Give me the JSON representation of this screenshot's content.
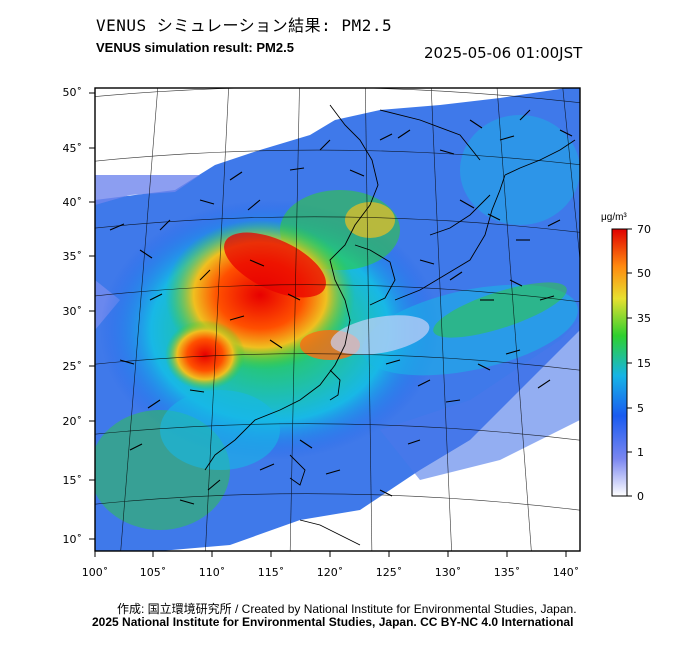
{
  "header": {
    "title_jp": "VENUS シミュレーション結果: PM2.5",
    "title_en": "VENUS simulation result: PM2.5",
    "timestamp": "2025-05-06 01:00JST"
  },
  "map": {
    "lat_labels": [
      "50˚",
      "45˚",
      "40˚",
      "35˚",
      "30˚",
      "25˚",
      "20˚",
      "15˚",
      "10˚"
    ],
    "lon_labels": [
      "100˚",
      "105˚",
      "110˚",
      "115˚",
      "120˚",
      "125˚",
      "130˚",
      "135˚",
      "140˚"
    ],
    "lat_range": [
      9,
      51
    ],
    "lon_range": [
      100,
      141
    ]
  },
  "colorbar": {
    "unit": "μg/m³",
    "tick_labels": [
      "70",
      "50",
      "35",
      "15",
      "5",
      "1",
      "0"
    ],
    "colors": [
      "#ffffff",
      "#6f7ef2",
      "#1a5bf0",
      "#18b8e6",
      "#2fd02f",
      "#f0d030",
      "#ff7a10",
      "#e80000"
    ]
  },
  "credits": {
    "line1": "作成: 国立環境研究所 / Created by National Institute for Environmental Studies, Japan.",
    "line2": "2025 National Institute for Environmental Studies, Japan. CC BY-NC 4.0 International"
  }
}
